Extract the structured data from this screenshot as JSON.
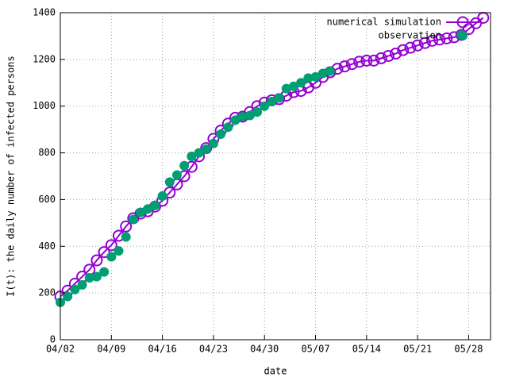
{
  "chart_data": {
    "type": "linespoints",
    "xlabel": "date",
    "ylabel": "I(t): the daily number of infected persons",
    "x": [
      "04/02",
      "04/03",
      "04/04",
      "04/05",
      "04/06",
      "04/07",
      "04/08",
      "04/09",
      "04/10",
      "04/11",
      "04/12",
      "04/13",
      "04/14",
      "04/15",
      "04/16",
      "04/17",
      "04/18",
      "04/19",
      "04/20",
      "04/21",
      "04/22",
      "04/23",
      "04/24",
      "04/25",
      "04/26",
      "04/27",
      "04/28",
      "04/29",
      "04/30",
      "05/01",
      "05/02",
      "05/03",
      "05/04",
      "05/05",
      "05/06",
      "05/07",
      "05/08",
      "05/09",
      "05/10",
      "05/11",
      "05/12",
      "05/13",
      "05/14",
      "05/15",
      "05/16",
      "05/17",
      "05/18",
      "05/19",
      "05/20",
      "05/21",
      "05/22",
      "05/23",
      "05/24",
      "05/25",
      "05/26",
      "05/27",
      "05/28",
      "05/29",
      "05/30"
    ],
    "series": [
      {
        "name": "numerical simulation",
        "color": "#9400d3",
        "style": "linespoints",
        "values": [
          185,
          210,
          240,
          270,
          300,
          340,
          375,
          405,
          445,
          485,
          520,
          540,
          550,
          570,
          595,
          630,
          665,
          700,
          740,
          785,
          820,
          860,
          895,
          925,
          950,
          955,
          975,
          1000,
          1015,
          1025,
          1030,
          1045,
          1060,
          1065,
          1080,
          1100,
          1125,
          1145,
          1160,
          1170,
          1180,
          1190,
          1195,
          1195,
          1205,
          1215,
          1225,
          1240,
          1250,
          1260,
          1270,
          1280,
          1285,
          1290,
          1295,
          1305,
          1330,
          1355,
          1378
        ]
      },
      {
        "name": "observation",
        "color": "#009e73",
        "style": "points",
        "values": [
          160,
          185,
          215,
          235,
          265,
          270,
          290,
          355,
          380,
          440,
          515,
          545,
          560,
          575,
          615,
          675,
          705,
          745,
          785,
          800,
          815,
          840,
          880,
          910,
          940,
          955,
          960,
          975,
          1000,
          1020,
          1035,
          1075,
          1085,
          1100,
          1120,
          1125,
          1140,
          1150,
          null,
          null,
          null,
          null,
          null,
          null,
          null,
          null,
          null,
          null,
          null,
          null,
          null,
          null,
          null,
          null,
          null,
          1305,
          null,
          null,
          null
        ]
      }
    ],
    "xlim": [
      "04/02",
      "05/31"
    ],
    "xticks": [
      "04/02",
      "04/09",
      "04/16",
      "04/23",
      "04/30",
      "05/07",
      "05/14",
      "05/21",
      "05/28"
    ],
    "ylim": [
      0,
      1400
    ],
    "yticks": [
      0,
      200,
      400,
      600,
      800,
      1000,
      1200,
      1400
    ],
    "grid": true,
    "legend": "top-right"
  }
}
